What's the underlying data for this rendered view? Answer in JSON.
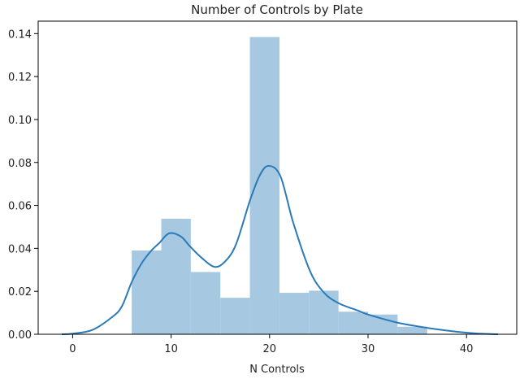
{
  "chart_data": {
    "type": "bar",
    "title": "Number of Controls by Plate",
    "xlabel": "N Controls",
    "ylabel": "",
    "xlim": [
      -3.5,
      45.1
    ],
    "ylim": [
      0,
      0.1458
    ],
    "grid": false,
    "xticks": [
      0,
      10,
      20,
      30,
      40
    ],
    "xtick_labels": [
      "0",
      "10",
      "20",
      "30",
      "40"
    ],
    "yticks": [
      0,
      0.02,
      0.04,
      0.06,
      0.08,
      0.1,
      0.12,
      0.14
    ],
    "ytick_labels": [
      "0.00",
      "0.02",
      "0.04",
      "0.06",
      "0.08",
      "0.10",
      "0.12",
      "0.14"
    ],
    "histogram": {
      "bin_edges": [
        6,
        9,
        12,
        15,
        18,
        21,
        24,
        27,
        30,
        33,
        36
      ],
      "density": [
        0.039,
        0.0538,
        0.029,
        0.017,
        0.1384,
        0.0193,
        0.0203,
        0.0105,
        0.0092,
        0.0035
      ],
      "color": "#a6c8e1"
    },
    "kde": {
      "color": "#2a7ab9",
      "x": [
        -1.1,
        0,
        2,
        4,
        5,
        6,
        7,
        8,
        8.8,
        9.8,
        11,
        11.9,
        13,
        14.4,
        15.5,
        16.6,
        18,
        19,
        19.9,
        21.1,
        22.4,
        24.1,
        25.5,
        27,
        29,
        30,
        33,
        36,
        39,
        41,
        43.2
      ],
      "y": [
        0,
        0.0003,
        0.002,
        0.008,
        0.013,
        0.0243,
        0.033,
        0.039,
        0.0425,
        0.047,
        0.0455,
        0.041,
        0.036,
        0.0314,
        0.034,
        0.042,
        0.0622,
        0.074,
        0.0784,
        0.0736,
        0.052,
        0.0295,
        0.0195,
        0.0145,
        0.011,
        0.0092,
        0.0054,
        0.003,
        0.0012,
        0.0004,
        0
      ]
    }
  }
}
